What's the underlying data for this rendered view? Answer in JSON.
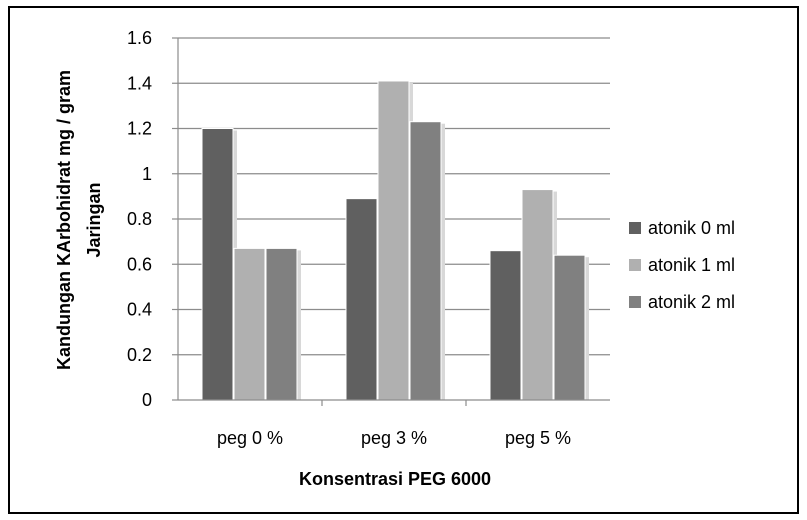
{
  "chart_data": {
    "type": "bar",
    "title": "",
    "xlabel": "Konsentrasi PEG 6000",
    "ylabel_lines": [
      "Kandungan KArbohidrat mg / gram",
      "Jaringan"
    ],
    "categories": [
      "peg 0 %",
      "peg 3 %",
      "peg 5 %"
    ],
    "series": [
      {
        "name": "atonik 0 ml",
        "color": "#606060",
        "values": [
          1.2,
          0.89,
          0.66
        ]
      },
      {
        "name": "atonik 1 ml",
        "color": "#b0b0b0",
        "values": [
          0.67,
          1.41,
          0.93
        ]
      },
      {
        "name": "atonik 2 ml",
        "color": "#808080",
        "values": [
          0.67,
          1.23,
          0.64
        ]
      }
    ],
    "ylim": [
      0,
      1.6
    ],
    "yticks": [
      "0",
      "0.2",
      "0.4",
      "0.6",
      "0.8",
      "1",
      "1.2",
      "1.4",
      "1.6"
    ],
    "grid": true,
    "legend_position": "right"
  }
}
